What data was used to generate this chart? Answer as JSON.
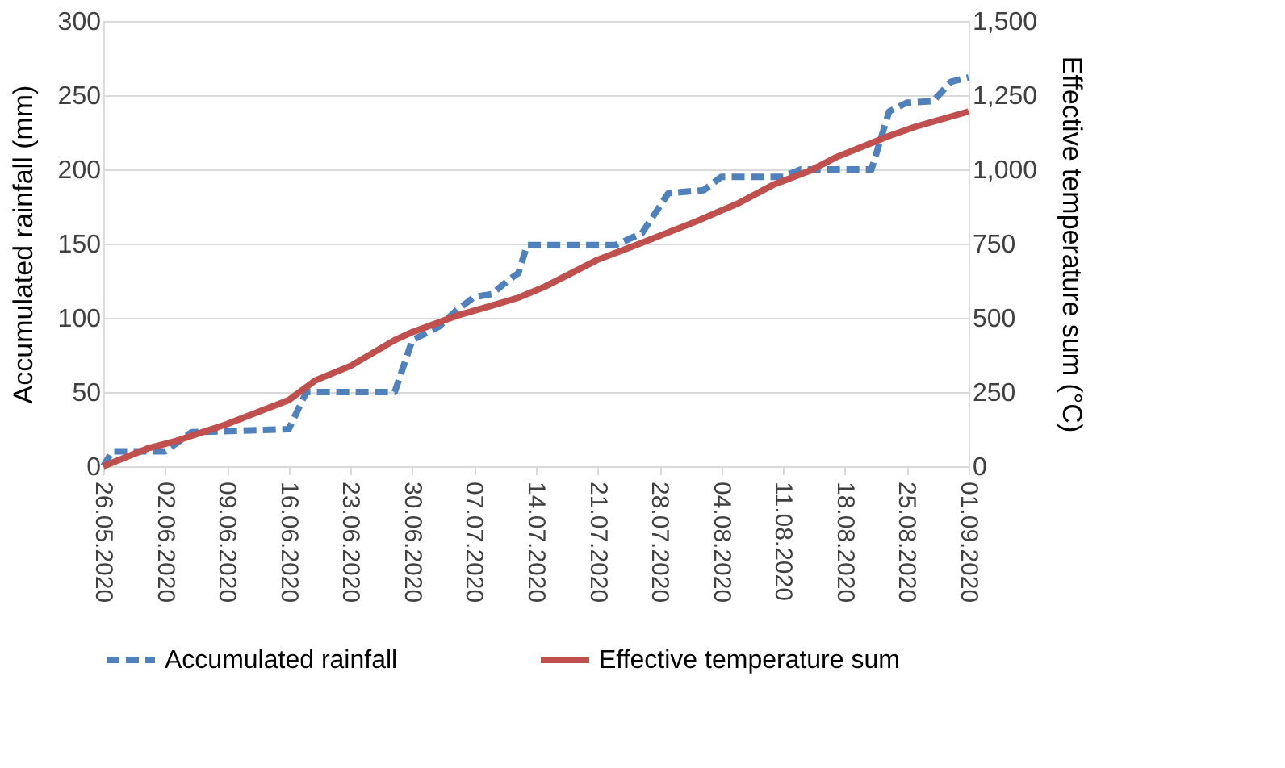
{
  "chart_data": {
    "type": "line",
    "ylabel": "Accumulated rainfall (mm)",
    "y2label": "Effective temperature sum (°C)",
    "xlim": [
      "2020-05-26",
      "2020-09-01"
    ],
    "xticks": [
      {
        "value": "2020-05-26",
        "label": "26.05.2020"
      },
      {
        "value": "2020-06-02",
        "label": "02.06.2020"
      },
      {
        "value": "2020-06-09",
        "label": "09.06.2020"
      },
      {
        "value": "2020-06-16",
        "label": "16.06.2020"
      },
      {
        "value": "2020-06-23",
        "label": "23.06.2020"
      },
      {
        "value": "2020-06-30",
        "label": "30.06.2020"
      },
      {
        "value": "2020-07-07",
        "label": "07.07.2020"
      },
      {
        "value": "2020-07-14",
        "label": "14.07.2020"
      },
      {
        "value": "2020-07-21",
        "label": "21.07.2020"
      },
      {
        "value": "2020-07-28",
        "label": "28.07.2020"
      },
      {
        "value": "2020-08-04",
        "label": "04.08.2020"
      },
      {
        "value": "2020-08-11",
        "label": "11.08.2020"
      },
      {
        "value": "2020-08-18",
        "label": "18.08.2020"
      },
      {
        "value": "2020-08-25",
        "label": "25.08.2020"
      },
      {
        "value": "2020-09-01",
        "label": "01.09.2020"
      }
    ],
    "ylim": [
      0,
      300
    ],
    "yticks": [
      0,
      50,
      100,
      150,
      200,
      250,
      300
    ],
    "y2lim": [
      0,
      1500
    ],
    "y2ticks": [
      0,
      {
        "value": 250,
        "label": "250"
      },
      {
        "value": 500,
        "label": "500"
      },
      {
        "value": 750,
        "label": "750"
      },
      {
        "value": 1000,
        "label": "1,000"
      },
      {
        "value": 1250,
        "label": "1,250"
      },
      {
        "value": 1500,
        "label": "1,500"
      }
    ],
    "grid": "y",
    "legend": "bottom",
    "marker": "none",
    "series": [
      {
        "name": "Accumulated rainfall",
        "color": "#4f81bd",
        "line_style": "dashed",
        "x": [
          "2020-05-26",
          "2020-05-27",
          "2020-06-02",
          "2020-06-05",
          "2020-06-16",
          "2020-06-18",
          "2020-06-28",
          "2020-06-30",
          "2020-07-03",
          "2020-07-05",
          "2020-07-07",
          "2020-07-09",
          "2020-07-11",
          "2020-07-12",
          "2020-07-13",
          "2020-07-23",
          "2020-07-26",
          "2020-07-29",
          "2020-08-02",
          "2020-08-04",
          "2020-08-11",
          "2020-08-13",
          "2020-08-21",
          "2020-08-23",
          "2020-08-25",
          "2020-08-28",
          "2020-08-30",
          "2020-09-01"
        ],
        "values": [
          0,
          10,
          10,
          23,
          25,
          50,
          50,
          85,
          94,
          105,
          114,
          116,
          126,
          130,
          149,
          149,
          157,
          184,
          186,
          195,
          195,
          200,
          200,
          239,
          245,
          246,
          259,
          262
        ]
      },
      {
        "name": "Effective temperature sum",
        "color": "#c0504d",
        "line_style": "solid",
        "axis": "y2",
        "x": [
          "2020-05-26",
          "2020-05-31",
          "2020-06-03",
          "2020-06-09",
          "2020-06-16",
          "2020-06-19",
          "2020-06-23",
          "2020-06-28",
          "2020-06-30",
          "2020-07-05",
          "2020-07-09",
          "2020-07-12",
          "2020-07-15",
          "2020-07-21",
          "2020-07-25",
          "2020-08-01",
          "2020-08-06",
          "2020-08-10",
          "2020-08-14",
          "2020-08-17",
          "2020-08-23",
          "2020-08-26",
          "2020-09-01"
        ],
        "values": [
          0,
          60,
          83,
          142,
          223,
          289,
          338,
          425,
          452,
          507,
          541,
          568,
          605,
          696,
          741,
          823,
          887,
          950,
          995,
          1041,
          1113,
          1144,
          1195
        ]
      }
    ]
  }
}
